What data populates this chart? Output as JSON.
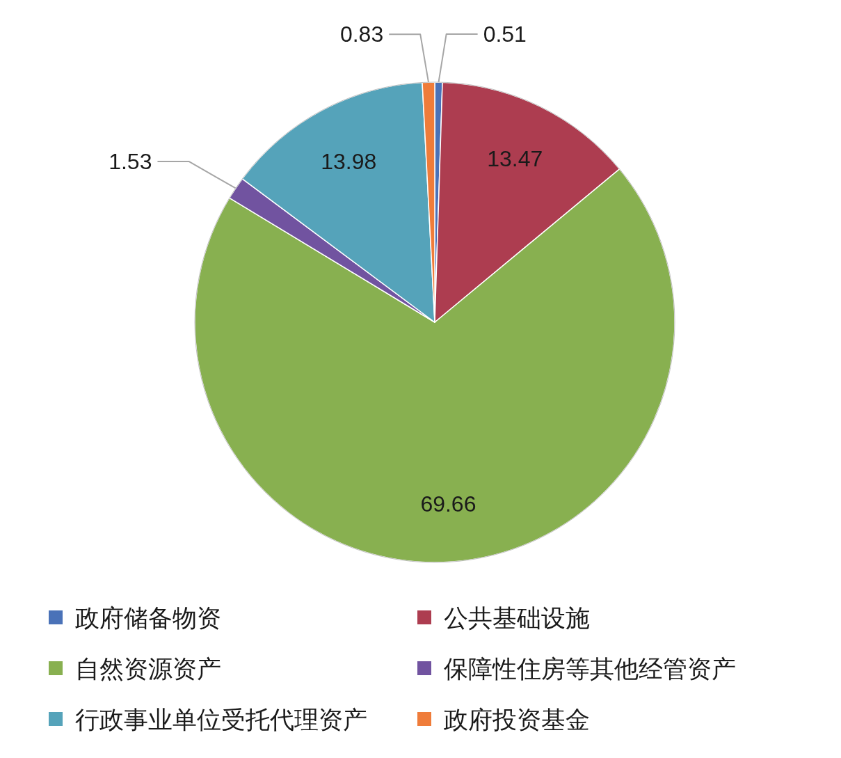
{
  "chart_data": {
    "type": "pie",
    "categories": [
      "政府储备物资",
      "公共基础设施",
      "自然资源资产",
      "保障性住房等其他经管资产",
      "行政事业单位受托代理资产",
      "政府投资基金"
    ],
    "values": [
      0.51,
      13.47,
      69.66,
      1.53,
      13.98,
      0.83
    ],
    "colors": [
      "#4a72b8",
      "#ad3d50",
      "#88b050",
      "#7153a0",
      "#55a3ba",
      "#ef7c3a"
    ],
    "data_labels": true,
    "legend": "bottom"
  }
}
